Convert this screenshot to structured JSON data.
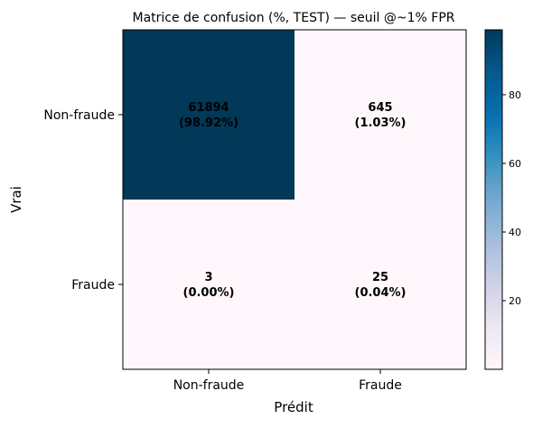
{
  "chart_data": {
    "type": "heatmap",
    "title": "Matrice de confusion (%, TEST) — seuil @~1% FPR",
    "xlabel": "Prédit",
    "ylabel": "Vrai",
    "x_categories": [
      "Non-fraude",
      "Fraude"
    ],
    "y_categories": [
      "Non-fraude",
      "Fraude"
    ],
    "cells": [
      {
        "row": 0,
        "col": 0,
        "count": "61894",
        "percent_label": "(98.92%)",
        "value": 98.92
      },
      {
        "row": 0,
        "col": 1,
        "count": "645",
        "percent_label": "(1.03%)",
        "value": 1.03
      },
      {
        "row": 1,
        "col": 0,
        "count": "3",
        "percent_label": "(0.00%)",
        "value": 0.0
      },
      {
        "row": 1,
        "col": 1,
        "count": "25",
        "percent_label": "(0.04%)",
        "value": 0.04
      }
    ],
    "colorbar": {
      "colormap": "PuBu",
      "min": 0.0,
      "max": 98.92,
      "ticks": [
        20,
        40,
        60,
        80
      ],
      "tick_labels": [
        "20",
        "40",
        "60",
        "80"
      ]
    },
    "grid": false,
    "legend": "none"
  }
}
